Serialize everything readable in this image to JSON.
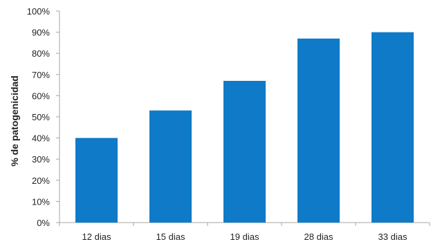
{
  "chart_data": {
    "type": "bar",
    "title": "",
    "xlabel": "",
    "ylabel": "% de patogenicidad",
    "categories": [
      "12 dias",
      "15 dias",
      "19 dias",
      "28 dias",
      "33 dias"
    ],
    "values": [
      40,
      53,
      67,
      87,
      90
    ],
    "ylim": [
      0,
      100
    ],
    "y_ticks": [
      {
        "value": 0,
        "label": "0%"
      },
      {
        "value": 10,
        "label": "10%"
      },
      {
        "value": 20,
        "label": "20%"
      },
      {
        "value": 30,
        "label": "30%"
      },
      {
        "value": 40,
        "label": "40%"
      },
      {
        "value": 50,
        "label": "50%"
      },
      {
        "value": 60,
        "label": "60%"
      },
      {
        "value": 70,
        "label": "70%"
      },
      {
        "value": 80,
        "label": "80%"
      },
      {
        "value": 90,
        "label": "90%"
      },
      {
        "value": 100,
        "label": "100%"
      }
    ],
    "grid": false,
    "legend": "none",
    "bar_color": "#0F7AC7",
    "axis_color": "#A6A6A6"
  }
}
